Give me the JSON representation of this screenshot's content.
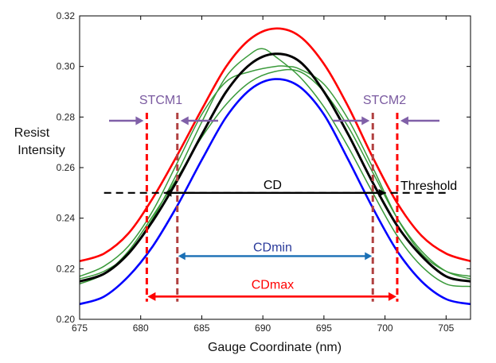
{
  "chart_data": {
    "type": "line",
    "title": "",
    "xlabel": "Gauge Coordinate (nm)",
    "ylabel": [
      "Resist",
      "Intensity"
    ],
    "xlim": [
      675,
      707
    ],
    "ylim": [
      0.2,
      0.32
    ],
    "xticks": [
      "675",
      "680",
      "685",
      "690",
      "695",
      "700",
      "705"
    ],
    "yticks": [
      "0.20",
      "0.22",
      "0.24",
      "0.26",
      "0.28",
      "0.30",
      "0.32"
    ],
    "grid": false,
    "series": [
      {
        "key": "red",
        "color": "#ff0000",
        "x": [
          675,
          677,
          679,
          681,
          683,
          685,
          687,
          689,
          691,
          693,
          695,
          697,
          699,
          701,
          703,
          705,
          707
        ],
        "y": [
          0.223,
          0.226,
          0.234,
          0.248,
          0.265,
          0.283,
          0.3,
          0.311,
          0.315,
          0.312,
          0.301,
          0.284,
          0.264,
          0.246,
          0.233,
          0.226,
          0.223
        ]
      },
      {
        "key": "black",
        "color": "#000000",
        "x": [
          675,
          677,
          679,
          681,
          683,
          685,
          687,
          689,
          691,
          693,
          695,
          697,
          699,
          701,
          703,
          705,
          707
        ],
        "y": [
          0.215,
          0.218,
          0.226,
          0.239,
          0.255,
          0.273,
          0.29,
          0.301,
          0.305,
          0.302,
          0.29,
          0.273,
          0.254,
          0.237,
          0.225,
          0.217,
          0.215
        ]
      },
      {
        "key": "blue",
        "color": "#0000ff",
        "x": [
          675,
          677,
          679,
          681,
          683,
          685,
          687,
          689,
          691,
          693,
          695,
          697,
          699,
          701,
          703,
          705,
          707
        ],
        "y": [
          0.206,
          0.209,
          0.217,
          0.229,
          0.245,
          0.263,
          0.28,
          0.291,
          0.295,
          0.292,
          0.281,
          0.263,
          0.244,
          0.227,
          0.215,
          0.208,
          0.206
        ]
      },
      {
        "key": "green1",
        "color": "#3a9a3a",
        "x": [
          675,
          677,
          679,
          681,
          683,
          685,
          687,
          689,
          690,
          691,
          693,
          695,
          697,
          699,
          701,
          703,
          705,
          707
        ],
        "y": [
          0.216,
          0.219,
          0.226,
          0.24,
          0.258,
          0.278,
          0.296,
          0.305,
          0.307,
          0.304,
          0.296,
          0.284,
          0.268,
          0.25,
          0.233,
          0.221,
          0.214,
          0.213
        ]
      },
      {
        "key": "green2",
        "color": "#3a9a3a",
        "x": [
          675,
          677,
          679,
          681,
          683,
          685,
          687,
          689,
          691,
          692,
          693,
          695,
          697,
          699,
          701,
          703,
          705,
          707
        ],
        "y": [
          0.217,
          0.221,
          0.229,
          0.243,
          0.262,
          0.281,
          0.294,
          0.298,
          0.3,
          0.3,
          0.299,
          0.293,
          0.279,
          0.26,
          0.24,
          0.226,
          0.219,
          0.217
        ]
      },
      {
        "key": "green3",
        "color": "#3a9a3a",
        "x": [
          675,
          677,
          679,
          681,
          683,
          685,
          687,
          689,
          691,
          693,
          695,
          697,
          699,
          701,
          703,
          705,
          707
        ],
        "y": [
          0.214,
          0.218,
          0.227,
          0.241,
          0.256,
          0.272,
          0.285,
          0.294,
          0.298,
          0.298,
          0.29,
          0.276,
          0.258,
          0.24,
          0.227,
          0.219,
          0.216
        ]
      }
    ],
    "annotations": {
      "threshold": {
        "text": "Threshold",
        "y": 0.25,
        "x_from": 677,
        "x_to": 705
      },
      "cd": {
        "text": "CD",
        "y": 0.25,
        "x_from": 682,
        "x_to": 700
      },
      "cdmin": {
        "text": "CDmin",
        "y": 0.225,
        "x_from": 683,
        "x_to": 699
      },
      "cdmax": {
        "text": "CDmax",
        "y": 0.209,
        "x_from": 680.5,
        "x_to": 701
      },
      "stcm1": {
        "text": "STCM1"
      },
      "stcm2": {
        "text": "STCM2"
      },
      "vlines": [
        {
          "key": "left-outer",
          "x": 680.5,
          "color": "#ff0000"
        },
        {
          "key": "left-inner",
          "x": 683,
          "color": "#b04040"
        },
        {
          "key": "right-inner",
          "x": 699,
          "color": "#b04040"
        },
        {
          "key": "right-outer",
          "x": 701,
          "color": "#ff0000"
        }
      ],
      "colors": {
        "stcm": "#7a5aa0",
        "arrow": "#8060a8",
        "cdmin": "#1a6fb5",
        "cdmax": "#ff0000"
      }
    }
  }
}
